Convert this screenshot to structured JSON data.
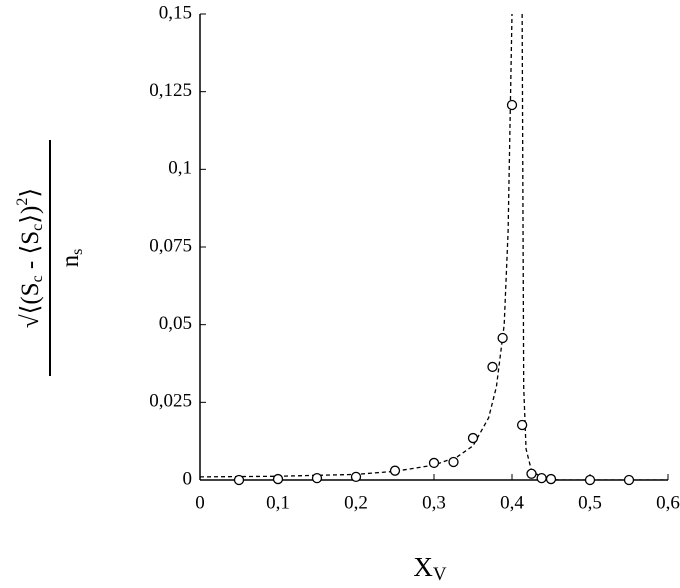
{
  "chart_data": {
    "type": "scatter",
    "xlabel": [
      "X",
      "V"
    ],
    "ylabel": {
      "numerator": [
        "√⟨(S",
        "c",
        " - ⟨S",
        "c",
        "⟩)",
        "2",
        "⟩"
      ],
      "denominator": [
        "n",
        "s"
      ]
    },
    "xlim": [
      0,
      0.6
    ],
    "xticks": [
      0,
      {
        "value": 0.1,
        "label": "0,1"
      },
      {
        "value": 0.2,
        "label": "0,2"
      },
      {
        "value": 0.3,
        "label": "0,3"
      },
      {
        "value": 0.4,
        "label": "0,4"
      },
      {
        "value": 0.5,
        "label": "0,5"
      },
      {
        "value": 0.6,
        "label": "0,6"
      }
    ],
    "ylim": [
      0,
      0.15
    ],
    "yticks": [
      0,
      {
        "value": 0.025,
        "label": "0,025"
      },
      {
        "value": 0.05,
        "label": "0,05"
      },
      {
        "value": 0.075,
        "label": "0,075"
      },
      {
        "value": 0.1,
        "label": "0,1"
      },
      {
        "value": 0.125,
        "label": "0,125"
      },
      {
        "value": 0.15,
        "label": "0,15"
      }
    ],
    "series": [
      {
        "kind": "markers",
        "color": "#000000",
        "x": [
          0.05,
          0.1,
          0.15,
          0.2,
          0.25,
          0.3,
          0.325,
          0.35,
          0.375,
          0.388,
          0.4,
          0.413,
          0.425,
          0.438,
          0.45,
          0.5,
          0.55
        ],
        "values": [
          0,
          0.0003,
          0.0006,
          0.001,
          0.003,
          0.0055,
          0.0058,
          0.0135,
          0.0364,
          0.0457,
          0.1207,
          0.0177,
          0.002,
          0.0006,
          0.0003,
          0,
          0
        ]
      },
      {
        "kind": "dashed-line",
        "color": "#000000",
        "x": [
          0,
          0.1,
          0.2,
          0.25,
          0.3,
          0.33,
          0.35,
          0.37,
          0.38,
          0.39,
          0.395,
          0.4,
          0.405,
          0.413,
          0.415,
          0.418,
          0.425,
          0.44,
          0.46,
          0.6
        ],
        "values": [
          0.001,
          0.0012,
          0.0018,
          0.0028,
          0.0048,
          0.0075,
          0.011,
          0.02,
          0.03,
          0.05,
          0.08,
          0.15,
          null,
          0.15,
          0.03,
          0.01,
          0.003,
          0.0005,
          0,
          0
        ]
      }
    ]
  }
}
